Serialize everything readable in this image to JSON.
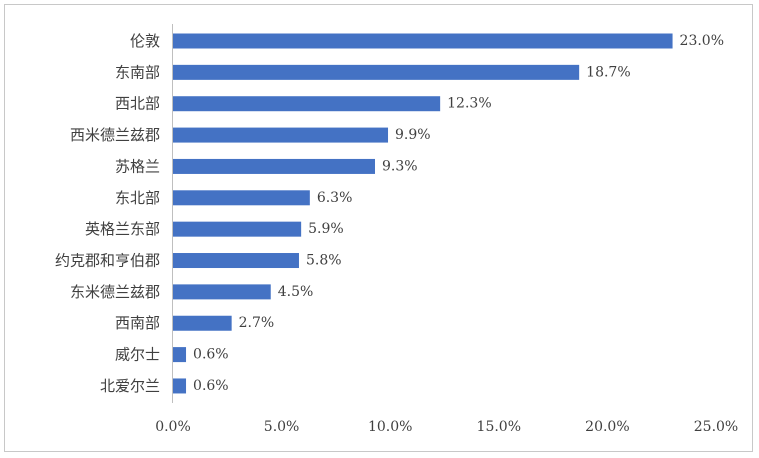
{
  "chart_data": {
    "type": "bar",
    "orientation": "horizontal",
    "title": "",
    "xlabel": "",
    "ylabel": "",
    "categories": [
      "伦敦",
      "东南部",
      "西北部",
      "西米德兰兹郡",
      "苏格兰",
      "东北部",
      "英格兰东部",
      "约克郡和亨伯郡",
      "东米德兰兹郡",
      "西南部",
      "威尔士",
      "北爱尔兰"
    ],
    "values": [
      23.0,
      18.7,
      12.3,
      9.9,
      9.3,
      6.3,
      5.9,
      5.8,
      4.5,
      2.7,
      0.6,
      0.6
    ],
    "value_labels": [
      "23.0%",
      "18.7%",
      "12.3%",
      "9.9%",
      "9.3%",
      "6.3%",
      "5.9%",
      "5.8%",
      "4.5%",
      "2.7%",
      "0.6%",
      "0.6%"
    ],
    "xlim": [
      0,
      25
    ],
    "x_ticks": [
      0,
      5,
      10,
      15,
      20,
      25
    ],
    "x_tick_labels": [
      "0.0%",
      "5.0%",
      "10.0%",
      "15.0%",
      "20.0%",
      "25.0%"
    ],
    "grid": false,
    "legend": "none",
    "bar_color": "#4472c4",
    "axis_color": "#bfbfbf",
    "text_color": "#404040"
  }
}
